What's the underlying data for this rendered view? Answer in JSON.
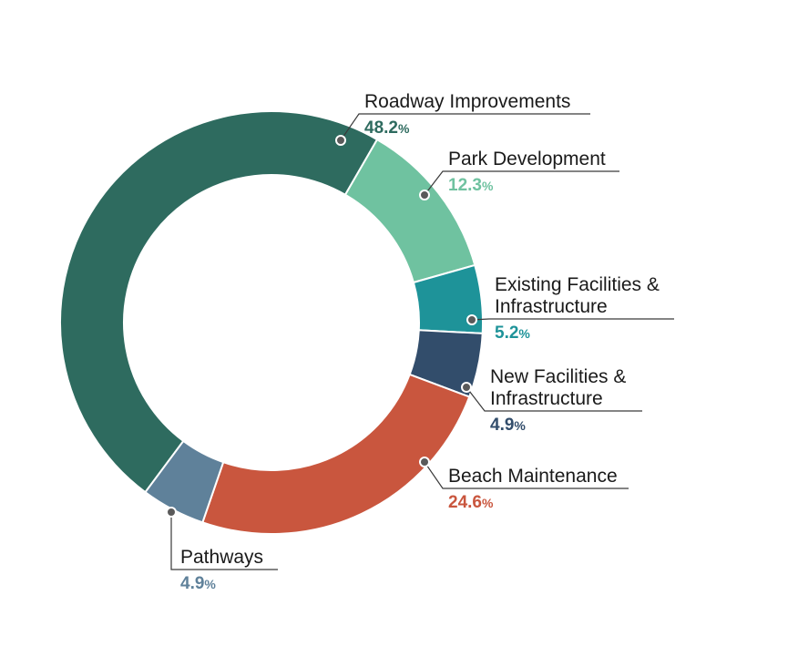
{
  "chart_data": {
    "type": "pie",
    "style": "donut",
    "legend": "none",
    "slices": [
      {
        "label": "Roadway Improvements",
        "value": 48.2,
        "value_text": "48.2",
        "color": "#2e6b5f"
      },
      {
        "label": "Park Development",
        "value": 12.3,
        "value_text": "12.3",
        "color": "#6fc2a0"
      },
      {
        "label": "Existing Facilities & Infrastructure",
        "label_lines": [
          "Existing Facilities &",
          "Infrastructure"
        ],
        "value": 5.2,
        "value_text": "5.2",
        "color": "#1e9399"
      },
      {
        "label": "New Facilities & Infrastructure",
        "label_lines": [
          "New Facilities &",
          "Infrastructure"
        ],
        "value": 4.9,
        "value_text": "4.9",
        "color": "#324d6b"
      },
      {
        "label": "Beach Maintenance",
        "value": 24.6,
        "value_text": "24.6",
        "color": "#c9563e"
      },
      {
        "label": "Pathways",
        "value": 4.9,
        "value_text": "4.9",
        "color": "#5f819a"
      }
    ],
    "percent_sign": "%"
  }
}
